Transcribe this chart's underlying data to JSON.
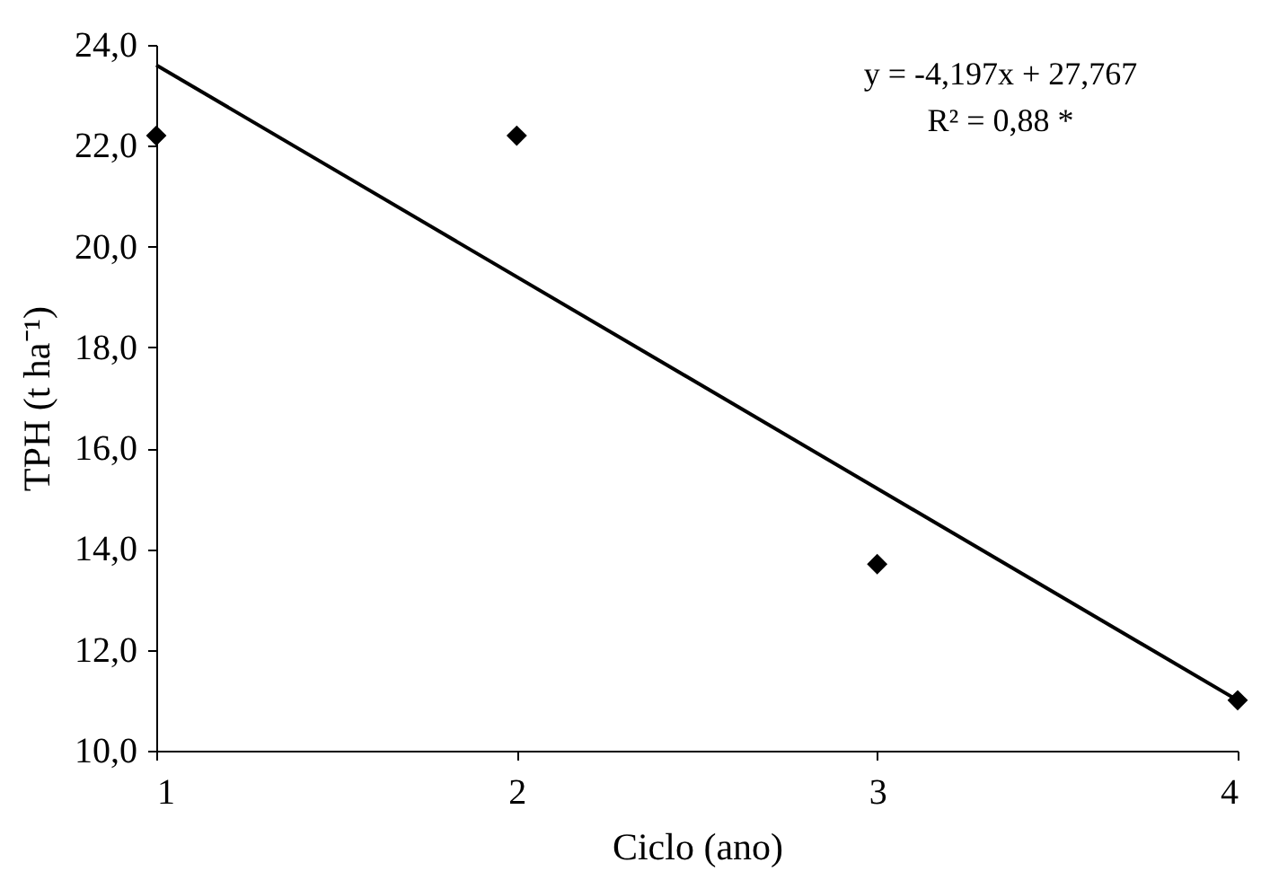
{
  "chart_data": {
    "type": "scatter",
    "xlabel": "Ciclo (ano)",
    "ylabel": "TPH (t ha⁻¹)",
    "annotations": [
      "y = -4,197x + 27,767",
      "R² = 0,88 *"
    ],
    "xlim": [
      1,
      4
    ],
    "xticks": [
      1,
      2,
      3,
      4
    ],
    "ylim": [
      10,
      24
    ],
    "yticks": [
      {
        "value": 10,
        "label": "10,0"
      },
      {
        "value": 12,
        "label": "12,0"
      },
      {
        "value": 14,
        "label": "14,0"
      },
      {
        "value": 16,
        "label": "16,0"
      },
      {
        "value": 18,
        "label": "18,0"
      },
      {
        "value": 20,
        "label": "20,0"
      },
      {
        "value": 22,
        "label": "22,0"
      },
      {
        "value": 24,
        "label": "24,0"
      }
    ],
    "grid": false,
    "legend": false,
    "series": [
      {
        "marker": "diamond",
        "color": "#000000",
        "x": [
          1,
          2,
          3,
          4
        ],
        "values": [
          22.2,
          22.2,
          13.7,
          11.0
        ]
      },
      {
        "type": "line",
        "color": "#000000",
        "x": [
          1,
          4
        ],
        "values": [
          23.6,
          11.0
        ]
      }
    ]
  }
}
